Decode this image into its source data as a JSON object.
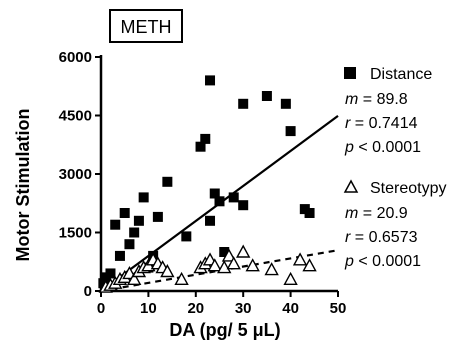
{
  "chart_data": {
    "type": "scatter",
    "tag": "METH",
    "xlabel": "DA (pg/ 5 μL)",
    "ylabel": "Motor Stimulation",
    "xlim": [
      0,
      50
    ],
    "ylim": [
      0,
      6000
    ],
    "x_ticks": [
      0,
      10,
      20,
      30,
      40,
      50
    ],
    "y_ticks": [
      0,
      1500,
      3000,
      4500,
      6000
    ],
    "x_tick_labels": [
      "0",
      "10",
      "20",
      "30",
      "40",
      "50"
    ],
    "y_tick_labels": [
      "0",
      "1500",
      "3000",
      "4500",
      "6000"
    ],
    "series": [
      {
        "name": "Distance",
        "marker": "filled-square",
        "color": "#000000",
        "fit": {
          "slope": 89.8,
          "line_style": "solid",
          "x_range": [
            0,
            50
          ]
        },
        "stats": {
          "m_label": "m",
          "m_value": " = 89.8",
          "r_label": "r",
          "r_value": " = 0.7414",
          "p_label": "p",
          "p_value": " < 0.0001"
        },
        "points": [
          [
            0.5,
            200
          ],
          [
            1,
            350
          ],
          [
            2,
            450
          ],
          [
            3,
            1700
          ],
          [
            4,
            900
          ],
          [
            5,
            2000
          ],
          [
            6,
            1200
          ],
          [
            7,
            1500
          ],
          [
            8,
            1800
          ],
          [
            9,
            2400
          ],
          [
            10,
            600
          ],
          [
            11,
            900
          ],
          [
            12,
            1900
          ],
          [
            14,
            2800
          ],
          [
            18,
            1400
          ],
          [
            21,
            3700
          ],
          [
            22,
            3900
          ],
          [
            23,
            5400
          ],
          [
            24,
            2500
          ],
          [
            25,
            2300
          ],
          [
            26,
            1000
          ],
          [
            28,
            2400
          ],
          [
            30,
            4800
          ],
          [
            30,
            2200
          ],
          [
            35,
            5000
          ],
          [
            39,
            4800
          ],
          [
            40,
            4100
          ],
          [
            43,
            2100
          ],
          [
            44,
            2000
          ],
          [
            23,
            1800
          ]
        ]
      },
      {
        "name": "Stereotypy",
        "marker": "open-triangle",
        "color": "#000000",
        "fit": {
          "slope": 20.9,
          "line_style": "dashed",
          "x_range": [
            0,
            50
          ]
        },
        "stats": {
          "m_label": "m",
          "m_value": " = 20.9",
          "r_label": "r",
          "r_value": " = 0.6573",
          "p_label": "p",
          "p_value": " < 0.0001"
        },
        "points": [
          [
            1,
            100
          ],
          [
            2,
            150
          ],
          [
            3,
            200
          ],
          [
            4,
            300
          ],
          [
            5,
            350
          ],
          [
            6,
            450
          ],
          [
            7,
            300
          ],
          [
            8,
            500
          ],
          [
            9,
            600
          ],
          [
            10,
            650
          ],
          [
            11,
            800
          ],
          [
            12,
            700
          ],
          [
            13,
            600
          ],
          [
            14,
            500
          ],
          [
            17,
            300
          ],
          [
            21,
            600
          ],
          [
            22,
            700
          ],
          [
            23,
            800
          ],
          [
            24,
            650
          ],
          [
            26,
            600
          ],
          [
            27,
            900
          ],
          [
            28,
            700
          ],
          [
            30,
            1000
          ],
          [
            32,
            650
          ],
          [
            36,
            550
          ],
          [
            40,
            300
          ],
          [
            42,
            800
          ],
          [
            44,
            650
          ]
        ]
      }
    ]
  }
}
